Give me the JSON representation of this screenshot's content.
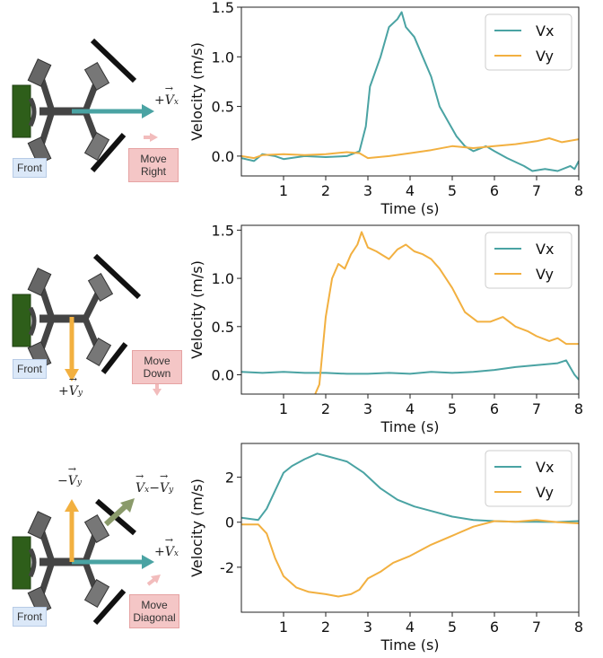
{
  "colors": {
    "vx": "#4aa3a3",
    "vy": "#f2b040",
    "diag": "#8a9a6a",
    "move_arrow": "#f2bcbc",
    "front_box": "#dbe8f8",
    "move_box": "#f4c6c6"
  },
  "panels": [
    {
      "id": "right",
      "robot": {
        "front_label": "Front",
        "move_label": [
          "Move",
          "Right"
        ],
        "vectors": [
          "+Vx"
        ]
      }
    },
    {
      "id": "down",
      "robot": {
        "front_label": "Front",
        "move_label": [
          "Move",
          "Down"
        ],
        "vectors": [
          "+Vy"
        ]
      }
    },
    {
      "id": "diagonal",
      "robot": {
        "front_label": "Front",
        "move_label": [
          "Move",
          "Diagonal"
        ],
        "vectors": [
          "+Vx",
          "-Vy",
          "Vx-Vy"
        ]
      }
    }
  ],
  "chart_data": [
    {
      "type": "line",
      "xlabel": "Time (s)",
      "ylabel": "Velocity (m/s)",
      "xlim": [
        0,
        8
      ],
      "ylim": [
        -0.2,
        1.5
      ],
      "xticks": [
        "1",
        "2",
        "3",
        "4",
        "5",
        "6",
        "7",
        "8"
      ],
      "yticks": [
        "0.0",
        "0.5",
        "1.0",
        "1.5"
      ],
      "ytick_values": [
        0.0,
        0.5,
        1.0,
        1.5
      ],
      "legend": "top-right",
      "grid": false,
      "series": [
        {
          "name": "Vx",
          "points": [
            [
              0,
              -0.02
            ],
            [
              0.3,
              -0.05
            ],
            [
              0.5,
              0.02
            ],
            [
              0.8,
              0.0
            ],
            [
              1.0,
              -0.03
            ],
            [
              1.5,
              0.0
            ],
            [
              2.0,
              -0.01
            ],
            [
              2.5,
              0.0
            ],
            [
              2.8,
              0.05
            ],
            [
              2.95,
              0.3
            ],
            [
              3.05,
              0.7
            ],
            [
              3.3,
              1.0
            ],
            [
              3.5,
              1.3
            ],
            [
              3.7,
              1.38
            ],
            [
              3.8,
              1.45
            ],
            [
              3.9,
              1.3
            ],
            [
              4.1,
              1.2
            ],
            [
              4.3,
              1.0
            ],
            [
              4.5,
              0.8
            ],
            [
              4.7,
              0.5
            ],
            [
              4.9,
              0.35
            ],
            [
              5.1,
              0.2
            ],
            [
              5.3,
              0.1
            ],
            [
              5.5,
              0.05
            ],
            [
              5.8,
              0.1
            ],
            [
              6.0,
              0.05
            ],
            [
              6.3,
              -0.02
            ],
            [
              6.7,
              -0.1
            ],
            [
              6.9,
              -0.15
            ],
            [
              7.2,
              -0.13
            ],
            [
              7.5,
              -0.15
            ],
            [
              7.8,
              -0.1
            ],
            [
              7.9,
              -0.13
            ],
            [
              8.0,
              -0.05
            ]
          ]
        },
        {
          "name": "Vy",
          "points": [
            [
              0,
              0.0
            ],
            [
              0.3,
              -0.02
            ],
            [
              0.5,
              0.01
            ],
            [
              1.0,
              0.02
            ],
            [
              1.5,
              0.01
            ],
            [
              2.0,
              0.02
            ],
            [
              2.5,
              0.04
            ],
            [
              2.8,
              0.03
            ],
            [
              3.0,
              -0.02
            ],
            [
              3.5,
              0.0
            ],
            [
              4.0,
              0.03
            ],
            [
              4.5,
              0.06
            ],
            [
              5.0,
              0.1
            ],
            [
              5.5,
              0.08
            ],
            [
              6.0,
              0.1
            ],
            [
              6.5,
              0.12
            ],
            [
              7.0,
              0.15
            ],
            [
              7.3,
              0.18
            ],
            [
              7.6,
              0.14
            ],
            [
              8.0,
              0.17
            ]
          ]
        }
      ]
    },
    {
      "type": "line",
      "xlabel": "Time (s)",
      "ylabel": "Velocity (m/s)",
      "xlim": [
        0,
        8
      ],
      "ylim": [
        -0.2,
        1.55
      ],
      "xticks": [
        "1",
        "2",
        "3",
        "4",
        "5",
        "6",
        "7",
        "8"
      ],
      "yticks": [
        "0.0",
        "0.5",
        "1.0",
        "1.5"
      ],
      "ytick_values": [
        0.0,
        0.5,
        1.0,
        1.5
      ],
      "legend": "top-right",
      "grid": false,
      "series": [
        {
          "name": "Vx",
          "points": [
            [
              0,
              0.03
            ],
            [
              0.5,
              0.02
            ],
            [
              1.0,
              0.03
            ],
            [
              1.5,
              0.02
            ],
            [
              2.0,
              0.02
            ],
            [
              2.5,
              0.01
            ],
            [
              3.0,
              0.01
            ],
            [
              3.5,
              0.02
            ],
            [
              4.0,
              0.01
            ],
            [
              4.5,
              0.03
            ],
            [
              5.0,
              0.02
            ],
            [
              5.5,
              0.03
            ],
            [
              6.0,
              0.05
            ],
            [
              6.5,
              0.08
            ],
            [
              7.0,
              0.1
            ],
            [
              7.5,
              0.12
            ],
            [
              7.7,
              0.15
            ],
            [
              7.9,
              0.0
            ],
            [
              8.0,
              -0.05
            ]
          ]
        },
        {
          "name": "Vy",
          "points": [
            [
              1.7,
              -0.25
            ],
            [
              1.85,
              -0.1
            ],
            [
              2.0,
              0.6
            ],
            [
              2.15,
              1.0
            ],
            [
              2.3,
              1.15
            ],
            [
              2.45,
              1.1
            ],
            [
              2.6,
              1.25
            ],
            [
              2.75,
              1.35
            ],
            [
              2.85,
              1.48
            ],
            [
              3.0,
              1.32
            ],
            [
              3.2,
              1.28
            ],
            [
              3.5,
              1.2
            ],
            [
              3.7,
              1.3
            ],
            [
              3.9,
              1.35
            ],
            [
              4.1,
              1.28
            ],
            [
              4.3,
              1.25
            ],
            [
              4.5,
              1.2
            ],
            [
              4.7,
              1.1
            ],
            [
              5.0,
              0.9
            ],
            [
              5.3,
              0.65
            ],
            [
              5.6,
              0.55
            ],
            [
              5.9,
              0.55
            ],
            [
              6.2,
              0.6
            ],
            [
              6.5,
              0.5
            ],
            [
              6.8,
              0.45
            ],
            [
              7.0,
              0.4
            ],
            [
              7.3,
              0.35
            ],
            [
              7.5,
              0.38
            ],
            [
              7.7,
              0.32
            ],
            [
              8.0,
              0.32
            ]
          ]
        }
      ]
    },
    {
      "type": "line",
      "xlabel": "Time (s)",
      "ylabel": "Velocity (m/s)",
      "xlim": [
        0,
        8
      ],
      "ylim": [
        -4,
        3.5
      ],
      "xticks": [
        "1",
        "2",
        "3",
        "4",
        "5",
        "6",
        "7",
        "8"
      ],
      "yticks": [
        "-2",
        "0",
        "2"
      ],
      "ytick_values": [
        -2,
        0,
        2
      ],
      "legend": "top-right",
      "grid": false,
      "series": [
        {
          "name": "Vx",
          "points": [
            [
              0,
              0.2
            ],
            [
              0.4,
              0.1
            ],
            [
              0.6,
              0.6
            ],
            [
              0.8,
              1.4
            ],
            [
              1.0,
              2.2
            ],
            [
              1.2,
              2.5
            ],
            [
              1.5,
              2.8
            ],
            [
              1.8,
              3.05
            ],
            [
              2.1,
              2.9
            ],
            [
              2.5,
              2.7
            ],
            [
              2.9,
              2.2
            ],
            [
              3.3,
              1.5
            ],
            [
              3.7,
              1.0
            ],
            [
              4.1,
              0.7
            ],
            [
              4.5,
              0.5
            ],
            [
              5.0,
              0.25
            ],
            [
              5.5,
              0.1
            ],
            [
              6.0,
              0.05
            ],
            [
              6.5,
              0.02
            ],
            [
              7.0,
              0.02
            ],
            [
              7.5,
              0.01
            ],
            [
              8.0,
              0.05
            ]
          ]
        },
        {
          "name": "Vy",
          "points": [
            [
              0,
              -0.1
            ],
            [
              0.4,
              -0.1
            ],
            [
              0.6,
              -0.5
            ],
            [
              0.8,
              -1.6
            ],
            [
              1.0,
              -2.4
            ],
            [
              1.3,
              -2.9
            ],
            [
              1.6,
              -3.1
            ],
            [
              2.0,
              -3.2
            ],
            [
              2.3,
              -3.3
            ],
            [
              2.6,
              -3.2
            ],
            [
              2.8,
              -3.0
            ],
            [
              3.0,
              -2.5
            ],
            [
              3.3,
              -2.2
            ],
            [
              3.6,
              -1.8
            ],
            [
              4.0,
              -1.5
            ],
            [
              4.5,
              -1.0
            ],
            [
              5.0,
              -0.6
            ],
            [
              5.5,
              -0.2
            ],
            [
              6.0,
              0.05
            ],
            [
              6.5,
              0.02
            ],
            [
              7.0,
              0.1
            ],
            [
              7.5,
              0.0
            ],
            [
              8.0,
              -0.05
            ]
          ]
        }
      ]
    }
  ]
}
